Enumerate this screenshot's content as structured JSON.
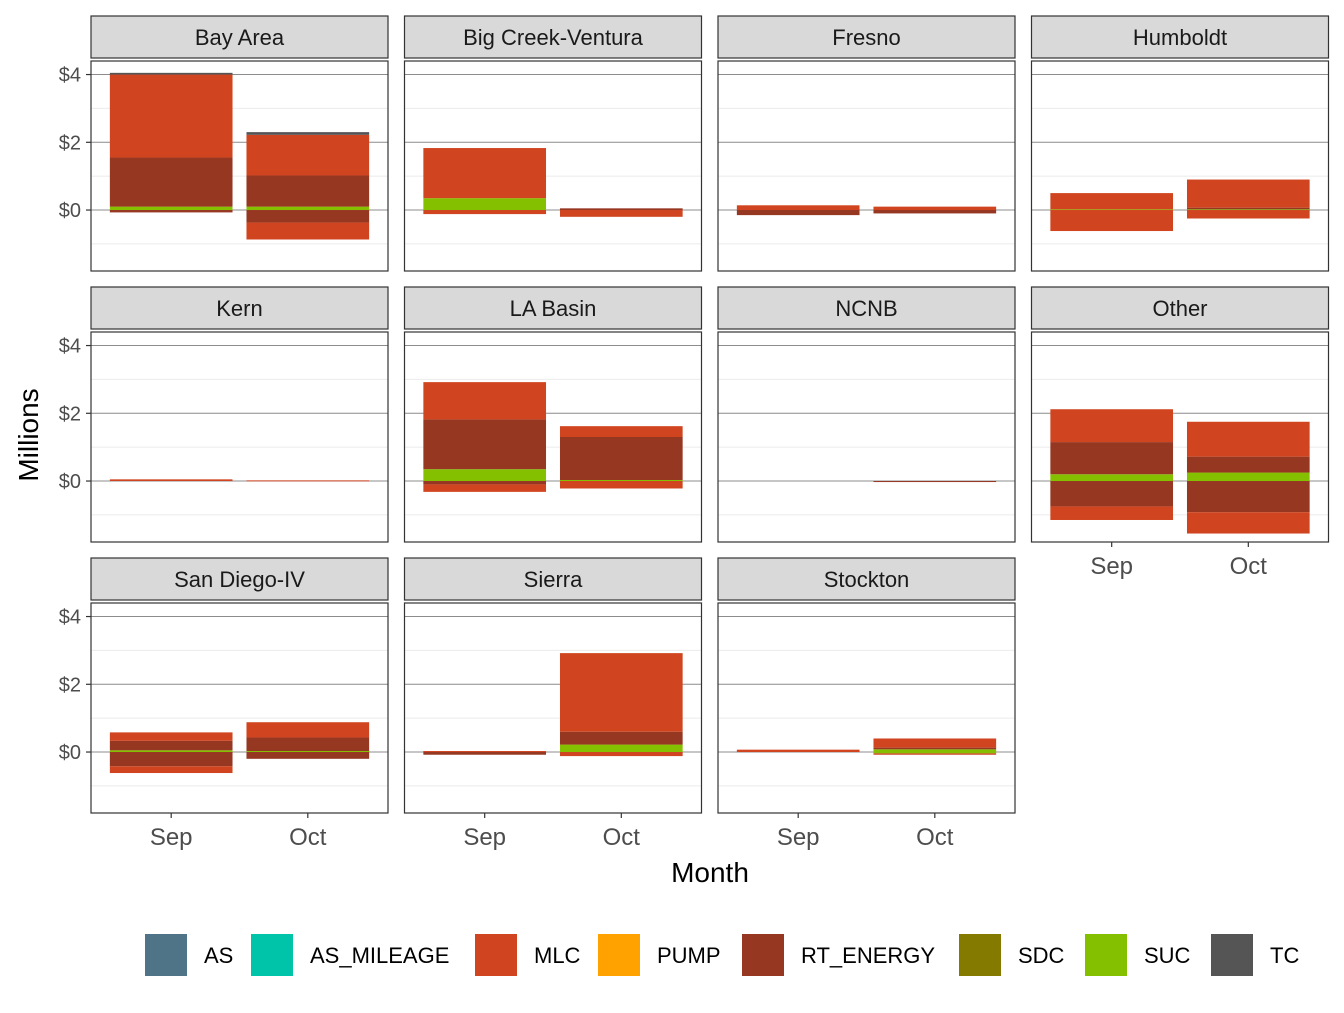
{
  "chart_data": {
    "type": "bar",
    "stacking": "diverging",
    "xlabel": "Month",
    "ylabel": "Millions",
    "categories": [
      "Sep",
      "Oct"
    ],
    "ylim": [
      -1.8,
      4.4
    ],
    "yticks": [
      {
        "value": 0,
        "label": "$0"
      },
      {
        "value": 2,
        "label": "$2"
      },
      {
        "value": 4,
        "label": "$4"
      }
    ],
    "grid": true,
    "legend_position": "bottom",
    "legend": [
      {
        "name": "AS",
        "color": "#4F7387"
      },
      {
        "name": "AS_MILEAGE",
        "color": "#00C4AA"
      },
      {
        "name": "MLC",
        "color": "#D04520"
      },
      {
        "name": "PUMP",
        "color": "#FFA200"
      },
      {
        "name": "RT_ENERGY",
        "color": "#963722"
      },
      {
        "name": "SDC",
        "color": "#857A00"
      },
      {
        "name": "SUC",
        "color": "#85C000"
      },
      {
        "name": "TC",
        "color": "#555555"
      }
    ],
    "facets": [
      {
        "title": "Bay Area",
        "values": {
          "Sep": {
            "SUC": 0.1,
            "RT_ENERGY": 1.45,
            "MLC": 2.45,
            "TC": 0.05,
            "neg_RT_ENERGY": -0.07
          },
          "Oct": {
            "SUC": 0.1,
            "RT_ENERGY": 0.92,
            "MLC": 1.2,
            "TC": 0.08,
            "neg_RT_ENERGY": -0.37,
            "neg_MLC": -0.5
          }
        }
      },
      {
        "title": "Big Creek-Ventura",
        "values": {
          "Sep": {
            "SUC": 0.35,
            "MLC": 1.48,
            "neg_MLC": -0.12
          },
          "Oct": {
            "RT_ENERGY": 0.05,
            "neg_MLC": -0.2
          }
        }
      },
      {
        "title": "Fresno",
        "values": {
          "Sep": {
            "MLC": 0.14,
            "neg_RT_ENERGY": -0.15
          },
          "Oct": {
            "MLC": 0.1,
            "neg_RT_ENERGY": -0.1
          }
        }
      },
      {
        "title": "Humboldt",
        "values": {
          "Sep": {
            "SUC": 0.02,
            "MLC": 0.48,
            "neg_MLC": -0.62
          },
          "Oct": {
            "RT_ENERGY": 0.05,
            "SUC": 0.02,
            "MLC": 0.83,
            "neg_MLC": -0.25
          }
        }
      },
      {
        "title": "Kern",
        "values": {
          "Sep": {
            "MLC": 0.05
          },
          "Oct": {
            "MLC": 0.02
          }
        }
      },
      {
        "title": "LA Basin",
        "values": {
          "Sep": {
            "SUC": 0.35,
            "RT_ENERGY": 1.47,
            "MLC": 1.1,
            "neg_RT_ENERGY": -0.1,
            "neg_MLC": -0.22
          },
          "Oct": {
            "SUC": 0.03,
            "RT_ENERGY": 1.27,
            "MLC": 0.32,
            "neg_MLC": -0.22
          }
        }
      },
      {
        "title": "NCNB",
        "values": {
          "Sep": {},
          "Oct": {
            "neg_RT_ENERGY": -0.03
          }
        }
      },
      {
        "title": "Other",
        "values": {
          "Sep": {
            "SUC": 0.2,
            "RT_ENERGY": 0.95,
            "MLC": 0.97,
            "neg_RT_ENERGY": -0.75,
            "neg_MLC": -0.4
          },
          "Oct": {
            "SUC": 0.25,
            "RT_ENERGY": 0.47,
            "MLC": 1.03,
            "neg_RT_ENERGY": -0.92,
            "neg_MLC": -0.63
          }
        }
      },
      {
        "title": "San Diego-IV",
        "values": {
          "Sep": {
            "SUC": 0.05,
            "RT_ENERGY": 0.28,
            "MLC": 0.25,
            "neg_RT_ENERGY": -0.42,
            "neg_MLC": -0.2
          },
          "Oct": {
            "SUC": 0.03,
            "RT_ENERGY": 0.4,
            "MLC": 0.45,
            "neg_RT_ENERGY": -0.2
          }
        }
      },
      {
        "title": "Sierra",
        "values": {
          "Sep": {
            "MLC": 0.03,
            "neg_RT_ENERGY": -0.08
          },
          "Oct": {
            "SUC": 0.22,
            "RT_ENERGY": 0.38,
            "MLC": 2.32,
            "neg_MLC": -0.12
          }
        }
      },
      {
        "title": "Stockton",
        "values": {
          "Sep": {
            "MLC": 0.07
          },
          "Oct": {
            "SUC": 0.08,
            "RT_ENERGY": 0.05,
            "MLC": 0.27,
            "neg_SUC": -0.04,
            "neg_MLC": -0.04
          }
        }
      }
    ]
  }
}
